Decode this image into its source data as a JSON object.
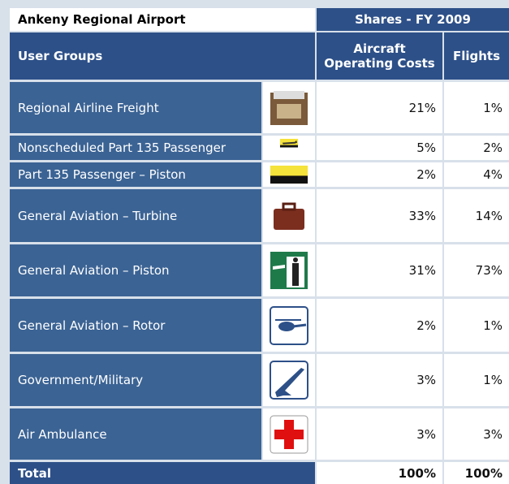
{
  "table": {
    "title": "Ankeny Regional Airport",
    "group_header": "Shares - FY 2009",
    "columns": [
      "User Groups",
      "Aircraft Operating Costs",
      "Flights"
    ],
    "rows": [
      [
        "Regional Airline Freight",
        "21%",
        "1%"
      ],
      [
        "Nonscheduled Part 135 Passenger",
        "5%",
        "2%"
      ],
      [
        "Part 135 Passenger – Piston",
        "2%",
        "4%"
      ],
      [
        "General Aviation – Turbine",
        "33%",
        "14%"
      ],
      [
        "General Aviation – Piston",
        "31%",
        "73%"
      ],
      [
        "General Aviation – Rotor",
        "2%",
        "1%"
      ],
      [
        "Government/Military",
        "3%",
        "1%"
      ],
      [
        "Air Ambulance",
        "3%",
        "3%"
      ]
    ],
    "total": [
      "Total",
      "100%",
      "100%"
    ]
  }
}
